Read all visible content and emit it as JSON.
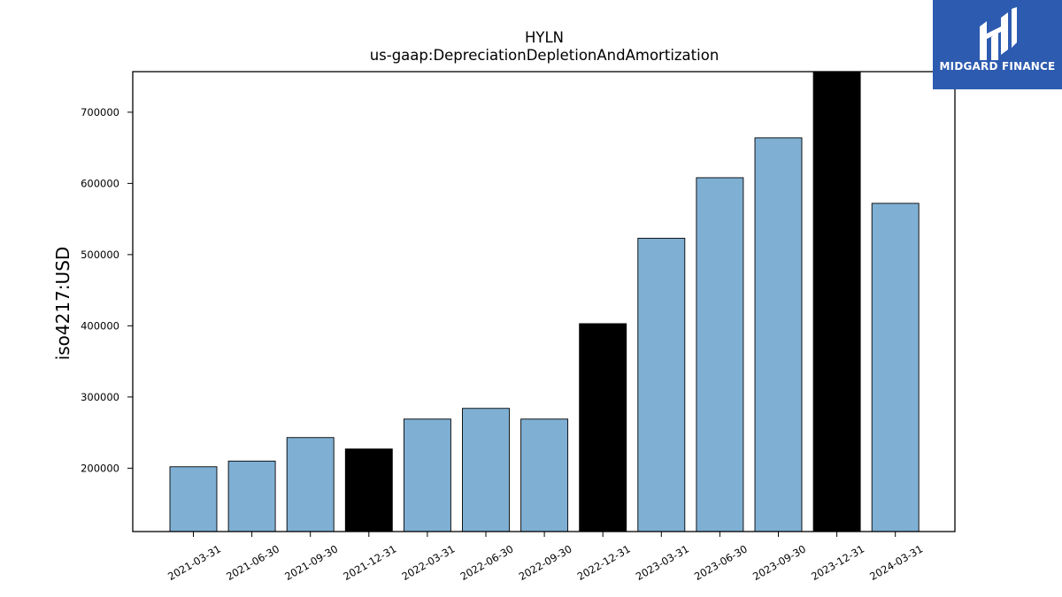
{
  "brand": {
    "name": "MIDGARD FINANCE",
    "color": "#2d5bb0",
    "icon": "midgard-logo-icon"
  },
  "chart_data": {
    "type": "bar",
    "title": "HYLN",
    "subtitle": "us-gaap:DepreciationDepletionAndAmortization",
    "xlabel": "",
    "ylabel": "iso4217:USD",
    "categories": [
      "2021-03-31",
      "2021-06-30",
      "2021-09-30",
      "2021-12-31",
      "2022-03-31",
      "2022-06-30",
      "2022-09-30",
      "2022-12-31",
      "2023-03-31",
      "2023-06-30",
      "2023-09-30",
      "2023-12-31",
      "2024-03-31"
    ],
    "values": [
      202000,
      210000,
      243000,
      227000,
      269000,
      284000,
      269000,
      403000,
      523000,
      608000,
      664000,
      757000,
      572000
    ],
    "bar_colors": [
      "#7fb0d4",
      "#7fb0d4",
      "#7fb0d4",
      "#000000",
      "#7fb0d4",
      "#7fb0d4",
      "#7fb0d4",
      "#000000",
      "#7fb0d4",
      "#7fb0d4",
      "#7fb0d4",
      "#000000",
      "#7fb0d4"
    ],
    "ylim": [
      111000,
      757000
    ],
    "yticks": [
      200000,
      300000,
      400000,
      500000,
      600000,
      700000
    ],
    "ytick_labels": [
      "200000",
      "300000",
      "400000",
      "500000",
      "600000",
      "700000"
    ],
    "grid": false,
    "legend": "none"
  }
}
